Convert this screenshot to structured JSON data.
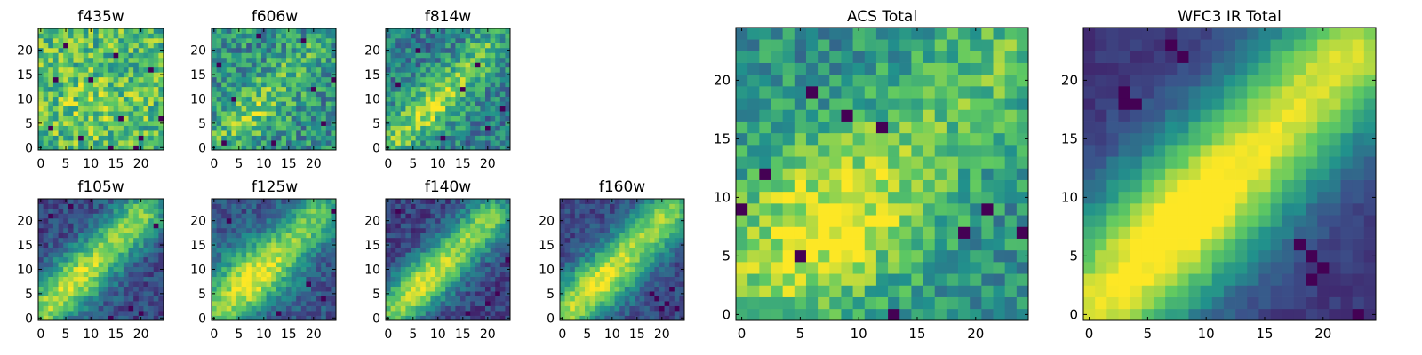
{
  "figure": {
    "background": "#ffffff",
    "colormap": "viridis",
    "colormap_stops": [
      "#440154",
      "#3b528b",
      "#21918c",
      "#5ec962",
      "#fde725"
    ]
  },
  "chart_data": [
    {
      "type": "heatmap",
      "title": "f435w",
      "grid": false,
      "shape": [
        25,
        25
      ],
      "origin": "lower",
      "xlim": [
        -0.5,
        24.5
      ],
      "ylim": [
        -0.5,
        24.5
      ],
      "xticks": [
        0,
        5,
        10,
        15,
        20
      ],
      "yticks": [
        0,
        5,
        10,
        15,
        20
      ],
      "pattern": {
        "base": 0.68,
        "noise": 0.5,
        "blob": {
          "cx": 10,
          "cy": 9,
          "sx": 6,
          "sy": 5,
          "amp": 0.1
        },
        "band": {
          "amp": 0.0,
          "width": 3.5,
          "offset": 0,
          "t0": 3,
          "t1": 18
        },
        "dark_pixels": [
          [
            16,
            6
          ],
          [
            19,
            0
          ],
          [
            14,
            0
          ],
          [
            20,
            2
          ],
          [
            2,
            4
          ],
          [
            24,
            6
          ],
          [
            15,
            19
          ],
          [
            5,
            21
          ],
          [
            10,
            14
          ],
          [
            22,
            16
          ],
          [
            3,
            14
          ],
          [
            8,
            2
          ]
        ],
        "seed": 11
      }
    },
    {
      "type": "heatmap",
      "title": "f606w",
      "grid": false,
      "shape": [
        25,
        25
      ],
      "origin": "lower",
      "xlim": [
        -0.5,
        24.5
      ],
      "ylim": [
        -0.5,
        24.5
      ],
      "xticks": [
        0,
        5,
        10,
        15,
        20
      ],
      "yticks": [
        0,
        5,
        10,
        15,
        20
      ],
      "pattern": {
        "base": 0.5,
        "noise": 0.48,
        "blob": {
          "cx": 8,
          "cy": 8,
          "sx": 5,
          "sy": 4,
          "amp": 0.12
        },
        "band": {
          "amp": 0.18,
          "width": 3.0,
          "offset": 0,
          "t0": 3,
          "t1": 18
        },
        "dark_pixels": [
          [
            1,
            17
          ],
          [
            4,
            10
          ],
          [
            18,
            22
          ],
          [
            22,
            5
          ],
          [
            12,
            1
          ],
          [
            2,
            1
          ],
          [
            24,
            14
          ],
          [
            9,
            23
          ],
          [
            20,
            12
          ]
        ],
        "seed": 23
      }
    },
    {
      "type": "heatmap",
      "title": "f814w",
      "grid": false,
      "shape": [
        25,
        25
      ],
      "origin": "lower",
      "xlim": [
        -0.5,
        24.5
      ],
      "ylim": [
        -0.5,
        24.5
      ],
      "xticks": [
        0,
        5,
        10,
        15,
        20
      ],
      "yticks": [
        0,
        5,
        10,
        15,
        20
      ],
      "pattern": {
        "base": 0.42,
        "noise": 0.42,
        "blob": {
          "cx": 9,
          "cy": 8,
          "sx": 5,
          "sy": 4,
          "amp": 0.15
        },
        "band": {
          "amp": 0.32,
          "width": 3.0,
          "offset": 0,
          "t0": 2,
          "t1": 19
        },
        "dark_pixels": [
          [
            20,
            4
          ],
          [
            6,
            20
          ],
          [
            15,
            12
          ],
          [
            23,
            8
          ],
          [
            2,
            13
          ],
          [
            11,
            2
          ],
          [
            18,
            17
          ]
        ],
        "seed": 37
      }
    },
    {
      "type": "heatmap",
      "title": "f105w",
      "grid": false,
      "shape": [
        25,
        25
      ],
      "origin": "lower",
      "xlim": [
        -0.5,
        24.5
      ],
      "ylim": [
        -0.5,
        24.5
      ],
      "xticks": [
        0,
        5,
        10,
        15,
        20
      ],
      "yticks": [
        0,
        5,
        10,
        15,
        20
      ],
      "pattern": {
        "base": 0.22,
        "noise": 0.26,
        "blob": {
          "cx": 8,
          "cy": 7,
          "sx": 5,
          "sy": 4,
          "amp": 0.12
        },
        "band": {
          "amp": 0.6,
          "width": 3.4,
          "offset": 1,
          "t0": 1,
          "t1": 20
        },
        "dark_pixels": [
          [
            18,
            2
          ],
          [
            20,
            1
          ],
          [
            14,
            0
          ],
          [
            2,
            21
          ],
          [
            23,
            19
          ],
          [
            6,
            23
          ]
        ],
        "seed": 41
      }
    },
    {
      "type": "heatmap",
      "title": "f125w",
      "grid": false,
      "shape": [
        25,
        25
      ],
      "origin": "lower",
      "xlim": [
        -0.5,
        24.5
      ],
      "ylim": [
        -0.5,
        24.5
      ],
      "xticks": [
        0,
        5,
        10,
        15,
        20
      ],
      "yticks": [
        0,
        5,
        10,
        15,
        20
      ],
      "pattern": {
        "base": 0.26,
        "noise": 0.26,
        "blob": {
          "cx": 7,
          "cy": 9,
          "sx": 6,
          "sy": 5,
          "amp": 0.25
        },
        "band": {
          "amp": 0.5,
          "width": 3.6,
          "offset": 0,
          "t0": 1,
          "t1": 21
        },
        "dark_pixels": [
          [
            22,
            4
          ],
          [
            19,
            7
          ],
          [
            3,
            20
          ],
          [
            24,
            22
          ],
          [
            13,
            1
          ]
        ],
        "seed": 53
      }
    },
    {
      "type": "heatmap",
      "title": "f140w",
      "grid": false,
      "shape": [
        25,
        25
      ],
      "origin": "lower",
      "xlim": [
        -0.5,
        24.5
      ],
      "ylim": [
        -0.5,
        24.5
      ],
      "xticks": [
        0,
        5,
        10,
        15,
        20
      ],
      "yticks": [
        0,
        5,
        10,
        15,
        20
      ],
      "pattern": {
        "base": 0.2,
        "noise": 0.24,
        "blob": {
          "cx": 8,
          "cy": 8,
          "sx": 5,
          "sy": 4,
          "amp": 0.12
        },
        "band": {
          "amp": 0.62,
          "width": 3.3,
          "offset": 0,
          "t0": 2,
          "t1": 20
        },
        "dark_pixels": [
          [
            20,
            3
          ],
          [
            22,
            5
          ],
          [
            2,
            22
          ],
          [
            24,
            12
          ],
          [
            16,
            1
          ]
        ],
        "seed": 67
      }
    },
    {
      "type": "heatmap",
      "title": "f160w",
      "grid": false,
      "shape": [
        25,
        25
      ],
      "origin": "lower",
      "xlim": [
        -0.5,
        24.5
      ],
      "ylim": [
        -0.5,
        24.5
      ],
      "xticks": [
        0,
        5,
        10,
        15,
        20
      ],
      "yticks": [
        0,
        5,
        10,
        15,
        20
      ],
      "pattern": {
        "base": 0.22,
        "noise": 0.22,
        "blob": {
          "cx": 8,
          "cy": 7,
          "sx": 6,
          "sy": 4,
          "amp": 0.15
        },
        "band": {
          "amp": 0.62,
          "width": 3.5,
          "offset": 0,
          "t0": 1,
          "t1": 21
        },
        "dark_pixels": [
          [
            19,
            4
          ],
          [
            21,
            3
          ],
          [
            22,
            6
          ],
          [
            23,
            2
          ],
          [
            20,
            2
          ],
          [
            18,
            5
          ]
        ],
        "seed": 79
      }
    },
    {
      "type": "heatmap",
      "title": "ACS Total",
      "grid": false,
      "shape": [
        25,
        25
      ],
      "origin": "lower",
      "xlim": [
        -0.5,
        24.5
      ],
      "ylim": [
        -0.5,
        24.5
      ],
      "xticks": [
        0,
        5,
        10,
        15,
        20
      ],
      "yticks": [
        0,
        5,
        10,
        15,
        20
      ],
      "pattern": {
        "base": 0.5,
        "noise": 0.36,
        "blob": {
          "cx": 7,
          "cy": 8,
          "sx": 6,
          "sy": 5,
          "amp": 0.28
        },
        "band": {
          "amp": 0.22,
          "width": 4.0,
          "offset": 0,
          "t0": 2,
          "t1": 22
        },
        "dark_pixels": [
          [
            6,
            19
          ],
          [
            2,
            12
          ],
          [
            0,
            9
          ],
          [
            19,
            7
          ],
          [
            24,
            7
          ],
          [
            13,
            0
          ],
          [
            9,
            17
          ],
          [
            21,
            9
          ],
          [
            12,
            16
          ],
          [
            5,
            5
          ]
        ],
        "seed": 97
      }
    },
    {
      "type": "heatmap",
      "title": "WFC3 IR Total",
      "grid": false,
      "shape": [
        25,
        25
      ],
      "origin": "lower",
      "xlim": [
        -0.5,
        24.5
      ],
      "ylim": [
        -0.5,
        24.5
      ],
      "xticks": [
        0,
        5,
        10,
        15,
        20
      ],
      "yticks": [
        0,
        5,
        10,
        15,
        20
      ],
      "pattern": {
        "base": 0.16,
        "noise": 0.1,
        "blob": {
          "cx": 8,
          "cy": 8,
          "sx": 6,
          "sy": 5,
          "amp": 0.15
        },
        "band": {
          "amp": 0.78,
          "width": 4.2,
          "offset": 0,
          "t0": 0,
          "t1": 22
        },
        "dark_pixels": [
          [
            3,
            19
          ],
          [
            4,
            18
          ],
          [
            3,
            18
          ],
          [
            7,
            23
          ],
          [
            8,
            22
          ],
          [
            19,
            3
          ],
          [
            20,
            4
          ],
          [
            23,
            0
          ],
          [
            18,
            6
          ],
          [
            19,
            5
          ]
        ],
        "seed": 113
      }
    }
  ]
}
